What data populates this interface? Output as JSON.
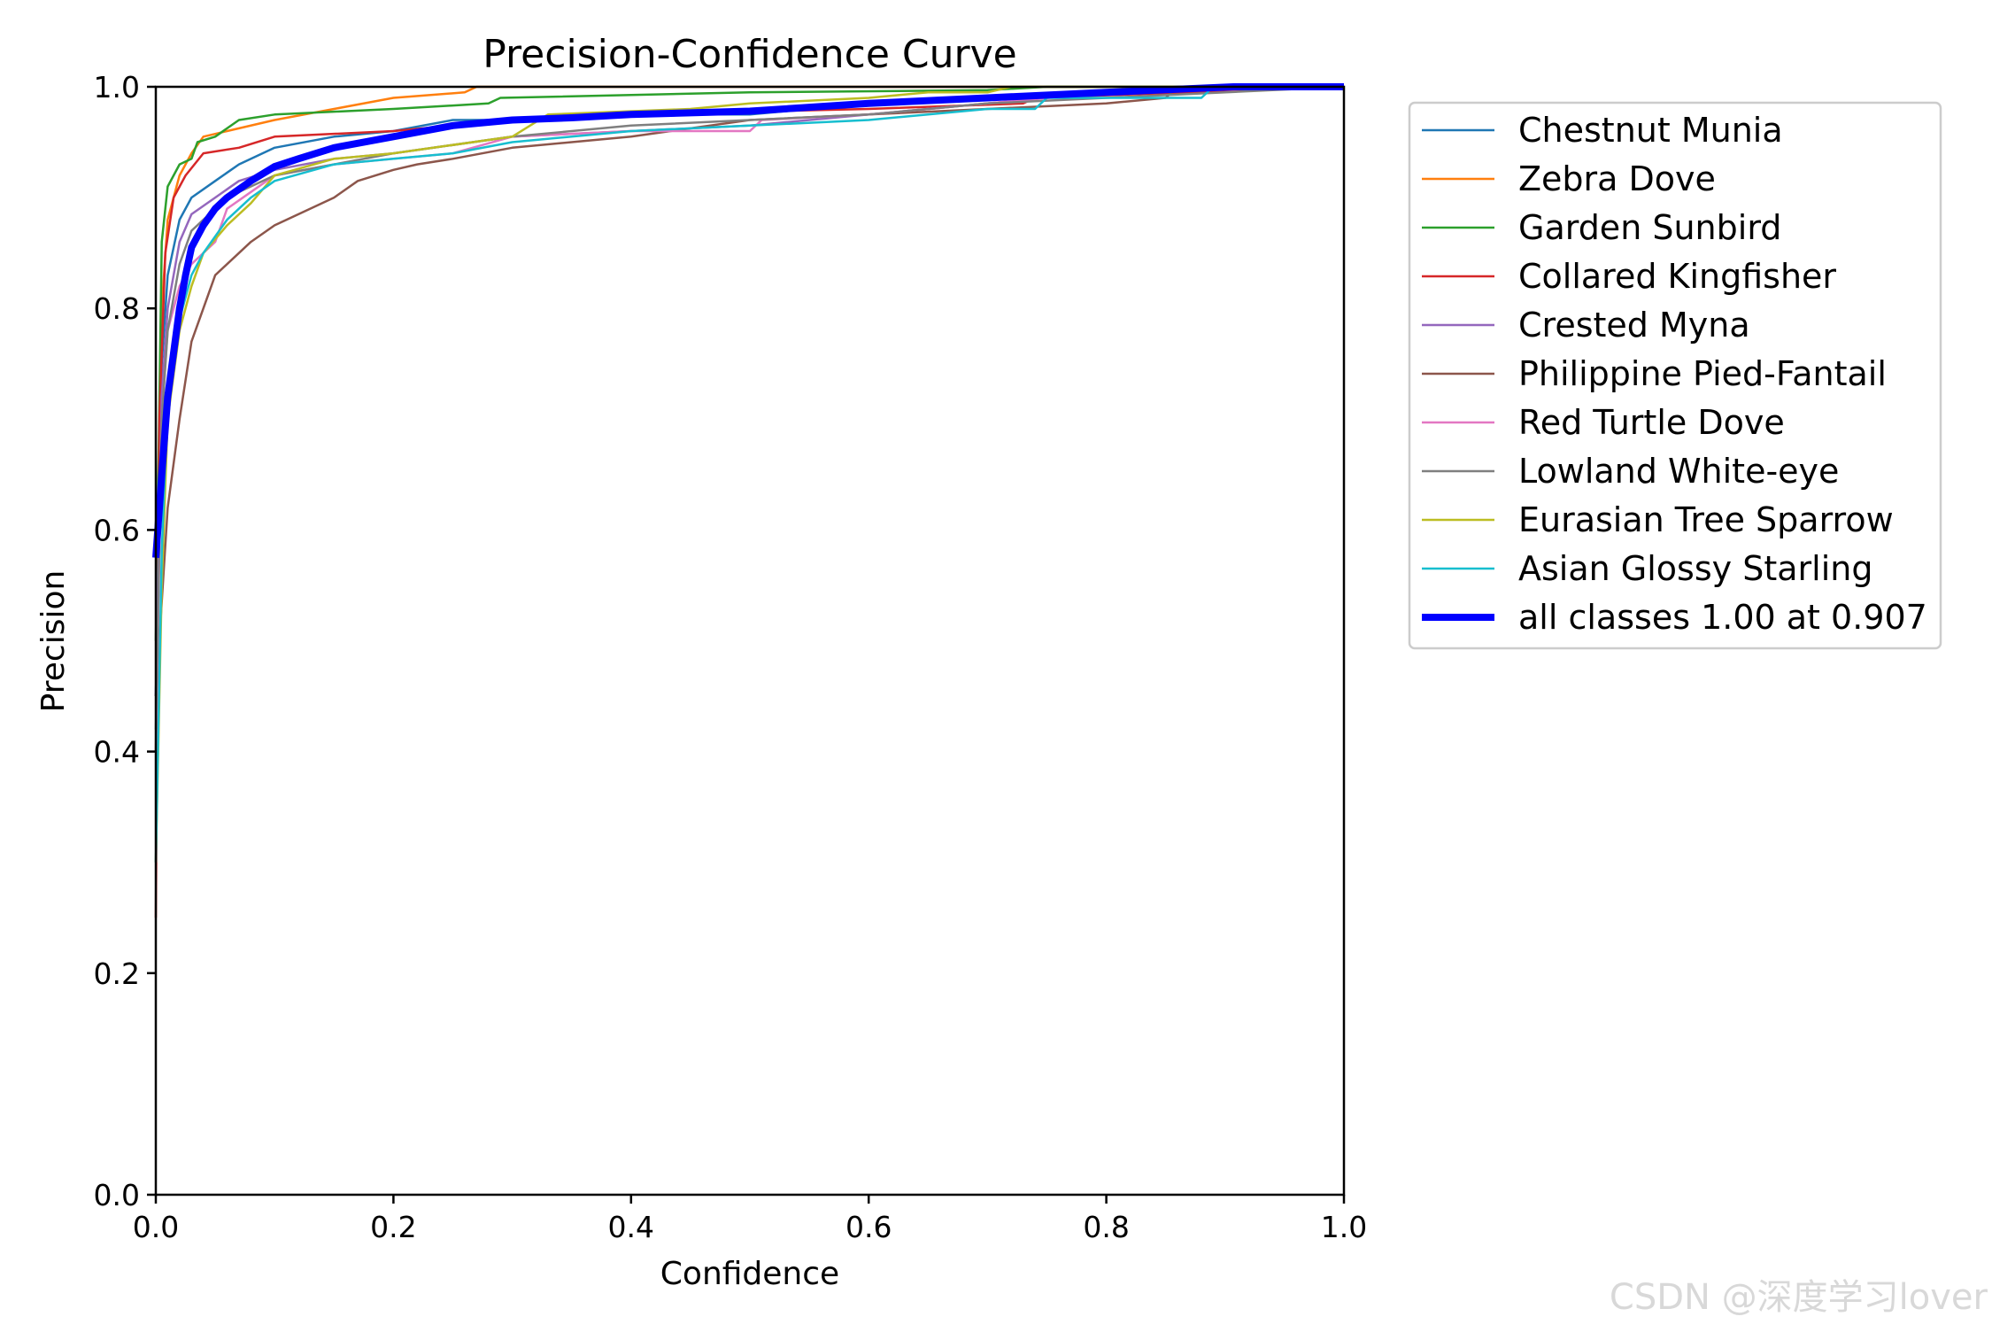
{
  "chart_data": {
    "type": "line",
    "title": "Precision-Confidence Curve",
    "xlabel": "Confidence",
    "ylabel": "Precision",
    "xlim": [
      0,
      1
    ],
    "ylim": [
      0,
      1
    ],
    "xticks": [
      "0.0",
      "0.2",
      "0.4",
      "0.6",
      "0.8",
      "1.0"
    ],
    "yticks": [
      "0.0",
      "0.2",
      "0.4",
      "0.6",
      "0.8",
      "1.0"
    ],
    "grid": false,
    "legend_position": "outside-top-right",
    "series": [
      {
        "name": "Chestnut Munia",
        "color": "#1f77b4",
        "width": 2.5,
        "x": [
          0.0,
          0.005,
          0.01,
          0.02,
          0.03,
          0.05,
          0.07,
          0.1,
          0.15,
          0.2,
          0.25,
          0.3,
          0.4,
          0.5,
          0.6,
          0.7,
          0.8,
          0.9,
          1.0
        ],
        "y": [
          0.45,
          0.75,
          0.83,
          0.88,
          0.9,
          0.915,
          0.93,
          0.945,
          0.955,
          0.96,
          0.97,
          0.97,
          0.975,
          0.975,
          0.985,
          0.99,
          0.995,
          1.0,
          1.0
        ]
      },
      {
        "name": "Zebra Dove",
        "color": "#ff7f0e",
        "width": 2.5,
        "x": [
          0.0,
          0.005,
          0.01,
          0.02,
          0.03,
          0.04,
          0.06,
          0.1,
          0.15,
          0.2,
          0.26,
          0.27,
          1.0
        ],
        "y": [
          0.4,
          0.8,
          0.88,
          0.92,
          0.94,
          0.955,
          0.96,
          0.97,
          0.98,
          0.99,
          0.995,
          1.0,
          1.0
        ]
      },
      {
        "name": "Garden Sunbird",
        "color": "#2ca02c",
        "width": 2.5,
        "x": [
          0.0,
          0.005,
          0.01,
          0.02,
          0.03,
          0.035,
          0.05,
          0.07,
          0.1,
          0.2,
          0.28,
          0.29,
          0.5,
          0.7,
          0.75,
          1.0
        ],
        "y": [
          0.5,
          0.86,
          0.91,
          0.93,
          0.935,
          0.95,
          0.955,
          0.97,
          0.975,
          0.98,
          0.985,
          0.99,
          0.995,
          0.997,
          1.0,
          1.0
        ]
      },
      {
        "name": "Collared Kingfisher",
        "color": "#d62728",
        "width": 2.5,
        "x": [
          0.0,
          0.003,
          0.008,
          0.015,
          0.025,
          0.04,
          0.07,
          0.1,
          0.2,
          0.3,
          0.4,
          0.6,
          0.73,
          0.74,
          1.0
        ],
        "y": [
          0.25,
          0.7,
          0.85,
          0.9,
          0.92,
          0.94,
          0.945,
          0.955,
          0.96,
          0.97,
          0.975,
          0.98,
          0.985,
          0.99,
          1.0
        ]
      },
      {
        "name": "Crested Myna",
        "color": "#9467bd",
        "width": 2.5,
        "x": [
          0.0,
          0.005,
          0.01,
          0.02,
          0.03,
          0.05,
          0.07,
          0.1,
          0.15,
          0.2,
          0.3,
          0.4,
          0.5,
          0.6,
          0.7,
          0.8,
          1.0
        ],
        "y": [
          0.45,
          0.72,
          0.8,
          0.86,
          0.885,
          0.9,
          0.915,
          0.925,
          0.935,
          0.94,
          0.955,
          0.96,
          0.965,
          0.975,
          0.985,
          0.995,
          1.0
        ]
      },
      {
        "name": "Philippine Pied-Fantail",
        "color": "#8c564b",
        "width": 2.5,
        "x": [
          0.0,
          0.01,
          0.02,
          0.03,
          0.04,
          0.05,
          0.06,
          0.07,
          0.08,
          0.1,
          0.13,
          0.15,
          0.17,
          0.2,
          0.22,
          0.25,
          0.3,
          0.35,
          0.4,
          0.5,
          0.6,
          0.7,
          0.8,
          0.85,
          0.86,
          1.0
        ],
        "y": [
          0.45,
          0.62,
          0.7,
          0.77,
          0.8,
          0.83,
          0.84,
          0.85,
          0.86,
          0.875,
          0.89,
          0.9,
          0.915,
          0.925,
          0.93,
          0.935,
          0.945,
          0.95,
          0.955,
          0.97,
          0.975,
          0.98,
          0.985,
          0.99,
          1.0,
          1.0
        ]
      },
      {
        "name": "Red Turtle Dove",
        "color": "#e377c2",
        "width": 2.5,
        "x": [
          0.0,
          0.005,
          0.01,
          0.02,
          0.03,
          0.05,
          0.06,
          0.08,
          0.1,
          0.15,
          0.2,
          0.25,
          0.3,
          0.4,
          0.5,
          0.51,
          0.6,
          0.7,
          0.8,
          1.0
        ],
        "y": [
          0.4,
          0.7,
          0.78,
          0.82,
          0.84,
          0.86,
          0.89,
          0.905,
          0.92,
          0.93,
          0.935,
          0.94,
          0.955,
          0.96,
          0.96,
          0.97,
          0.975,
          0.985,
          0.995,
          1.0
        ]
      },
      {
        "name": "Lowland White-eye",
        "color": "#7f7f7f",
        "width": 2.5,
        "x": [
          0.0,
          0.005,
          0.01,
          0.02,
          0.03,
          0.05,
          0.07,
          0.1,
          0.15,
          0.2,
          0.3,
          0.4,
          0.5,
          0.6,
          0.7,
          0.8,
          1.0
        ],
        "y": [
          0.42,
          0.7,
          0.78,
          0.84,
          0.87,
          0.89,
          0.905,
          0.92,
          0.93,
          0.94,
          0.955,
          0.965,
          0.97,
          0.975,
          0.985,
          0.99,
          1.0
        ]
      },
      {
        "name": "Eurasian Tree Sparrow",
        "color": "#bcbd22",
        "width": 2.5,
        "x": [
          0.0,
          0.005,
          0.01,
          0.02,
          0.03,
          0.04,
          0.06,
          0.08,
          0.1,
          0.15,
          0.2,
          0.3,
          0.33,
          0.45,
          0.5,
          0.6,
          0.65,
          0.7,
          0.72,
          1.0
        ],
        "y": [
          0.3,
          0.55,
          0.7,
          0.78,
          0.82,
          0.85,
          0.875,
          0.895,
          0.92,
          0.935,
          0.94,
          0.955,
          0.975,
          0.98,
          0.985,
          0.99,
          0.995,
          0.995,
          1.0,
          1.0
        ]
      },
      {
        "name": "Asian Glossy Starling",
        "color": "#17becf",
        "width": 2.5,
        "x": [
          0.0,
          0.005,
          0.01,
          0.02,
          0.03,
          0.04,
          0.06,
          0.08,
          0.1,
          0.15,
          0.2,
          0.25,
          0.3,
          0.4,
          0.5,
          0.6,
          0.7,
          0.74,
          0.75,
          0.88,
          0.89,
          1.0
        ],
        "y": [
          0.3,
          0.58,
          0.72,
          0.79,
          0.83,
          0.85,
          0.88,
          0.9,
          0.915,
          0.93,
          0.935,
          0.94,
          0.95,
          0.96,
          0.965,
          0.97,
          0.98,
          0.98,
          0.99,
          0.99,
          1.0,
          1.0
        ]
      },
      {
        "name": "all classes 1.00 at 0.907",
        "color": "#0000ff",
        "width": 8,
        "x": [
          0.0,
          0.005,
          0.01,
          0.015,
          0.02,
          0.025,
          0.03,
          0.04,
          0.05,
          0.06,
          0.08,
          0.1,
          0.12,
          0.15,
          0.2,
          0.25,
          0.3,
          0.35,
          0.4,
          0.5,
          0.6,
          0.7,
          0.8,
          0.907,
          1.0
        ],
        "y": [
          0.575,
          0.65,
          0.72,
          0.76,
          0.8,
          0.83,
          0.855,
          0.875,
          0.89,
          0.9,
          0.915,
          0.928,
          0.935,
          0.945,
          0.955,
          0.965,
          0.97,
          0.972,
          0.975,
          0.978,
          0.985,
          0.99,
          0.995,
          1.0,
          1.0
        ]
      }
    ]
  },
  "watermark": "CSDN @深度学习lover"
}
